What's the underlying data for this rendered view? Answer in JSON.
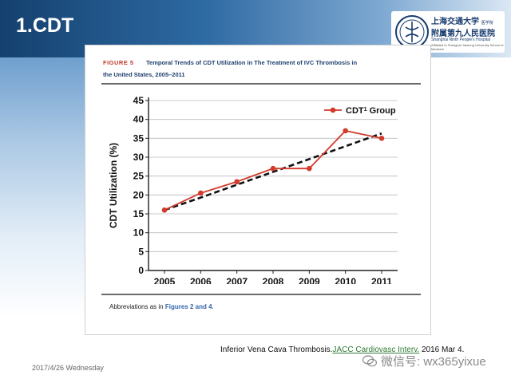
{
  "slide": {
    "title": "1.CDT",
    "date": "2017/4/26 Wednesday",
    "citation_main": "Inferior Vena Cava Thrombosis.",
    "citation_journal": "JACC Cardiovasc Interv.",
    "citation_date": " 2016 Mar 4.",
    "watermark": "微信号: wx365yixue"
  },
  "logo": {
    "line1": "上海交通大学",
    "line1_small": "医学院",
    "line2": "附属第九人民医院",
    "line3": "Shanghai Ninth People's Hospital",
    "line4": "Affiliated to Shanghai Jiaotong University School of Medicine"
  },
  "figure": {
    "label": "FIGURE 5",
    "title": "Temporal Trends of CDT Utilization in The Treatment of IVC Thrombosis in",
    "subtitle": "the United States, 2005–2011",
    "abbrev_prefix": "Abbreviations as in ",
    "abbrev_link": "Figures 2 and 4",
    "abbrev_suffix": "."
  },
  "chart_data": {
    "type": "line",
    "title": "",
    "xlabel": "",
    "ylabel": "CDT Utilization (%)",
    "categories": [
      "2005",
      "2006",
      "2007",
      "2008",
      "2009",
      "2010",
      "2011"
    ],
    "ylim": [
      0,
      45
    ],
    "yticks": [
      0,
      5,
      10,
      15,
      20,
      25,
      30,
      35,
      40,
      45
    ],
    "grid": "horizontal",
    "legend_position": "top-right",
    "series": [
      {
        "name": "CDT",
        "name_superscript": "1",
        "name_suffix": " Group",
        "color": "#d33a2c",
        "style": "solid-with-markers",
        "values": [
          16,
          20.5,
          23.5,
          27,
          27,
          37,
          35
        ]
      },
      {
        "name": "trend",
        "color": "#111111",
        "style": "dashed",
        "values": [
          16,
          19.3,
          22.7,
          26.1,
          29.5,
          32.9,
          36.3
        ]
      }
    ]
  }
}
